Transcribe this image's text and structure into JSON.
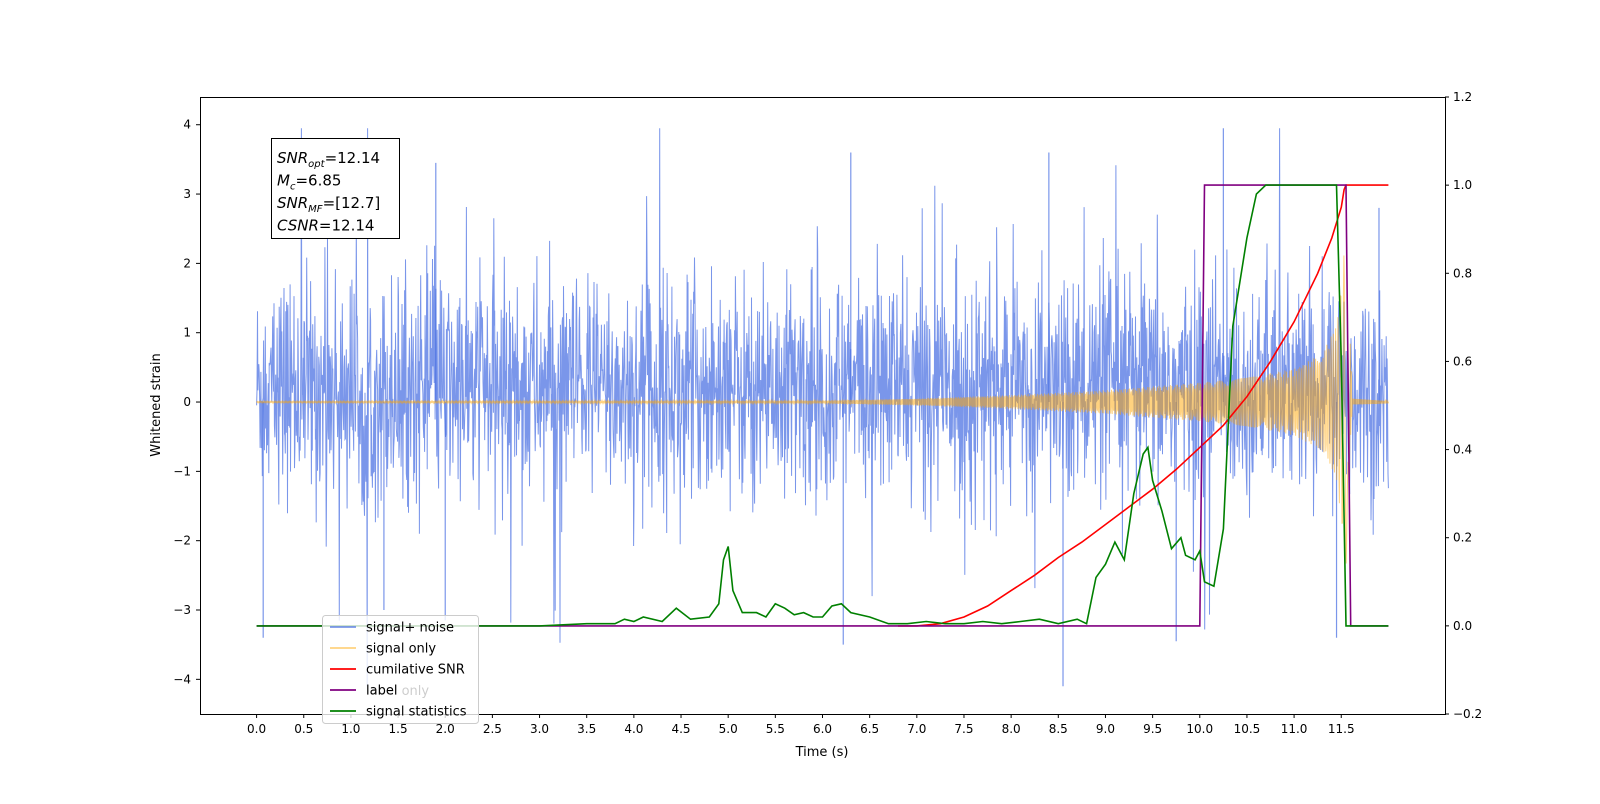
{
  "chart_data": {
    "type": "line",
    "xlabel": "Time (s)",
    "ylabel_left": "Whitened strain",
    "ylabel_right": "",
    "xlim": [
      -0.6,
      12.6
    ],
    "ylim_left": [
      -4.5,
      4.4
    ],
    "ylim_right": [
      -0.2,
      1.2
    ],
    "x_ticks": [
      0.0,
      0.5,
      1.0,
      1.5,
      2.0,
      2.5,
      3.0,
      3.5,
      4.0,
      4.5,
      5.0,
      5.5,
      6.0,
      6.5,
      7.0,
      7.5,
      8.0,
      8.5,
      9.0,
      9.5,
      10.0,
      10.5,
      11.0,
      11.5
    ],
    "x_tick_labels": [
      "0.0",
      "0.5",
      "1.0",
      "1.5",
      "2.0",
      "2.5",
      "3.0",
      "3.5",
      "4.0",
      "4.5",
      "5.0",
      "5.5",
      "6.0",
      "6.5",
      "7.0",
      "7.5",
      "8.0",
      "8.5",
      "9.0",
      "9.5",
      "10.0",
      "10.5",
      "11.0",
      "11.5"
    ],
    "y_ticks_left": [
      -4,
      -3,
      -2,
      -1,
      0,
      1,
      2,
      3,
      4
    ],
    "y_tick_labels_left": [
      "−4",
      "−3",
      "−2",
      "−1",
      "0",
      "1",
      "2",
      "3",
      "4"
    ],
    "y_ticks_right": [
      -0.2,
      0.0,
      0.2,
      0.4,
      0.6,
      0.8,
      1.0,
      1.2
    ],
    "y_tick_labels_right": [
      "−0.2",
      "0.0",
      "0.2",
      "0.4",
      "0.6",
      "0.8",
      "1.0",
      "1.2"
    ],
    "grid": false,
    "legend_position": "lower-left",
    "annotation": {
      "lines": [
        {
          "var": "SNR",
          "sub": "opt",
          "value": "=12.14"
        },
        {
          "var": "M",
          "sub": "c",
          "value": "=6.85"
        },
        {
          "var": "SNR",
          "sub": "MF",
          "value": "=[12.7]"
        },
        {
          "var": "CSNR",
          "sub": "",
          "value": "=12.14"
        }
      ]
    },
    "series": [
      {
        "name": "signal+ noise",
        "axis": "left",
        "color": "#4169e1",
        "kind": "noise",
        "x_start": 0.0,
        "x_end": 12.0,
        "typical_envelope": [
          -1.7,
          2.1
        ],
        "extreme_range": [
          -4.1,
          3.95
        ],
        "notable_peaks": [
          {
            "x": 0.07,
            "y": -3.4
          },
          {
            "x": 1.35,
            "y": -3.0
          },
          {
            "x": 2.0,
            "y": -3.15
          },
          {
            "x": 6.22,
            "y": -3.5
          },
          {
            "x": 8.55,
            "y": -4.1
          },
          {
            "x": 9.75,
            "y": -3.45
          },
          {
            "x": 11.45,
            "y": -3.4
          },
          {
            "x": 10.25,
            "y": 3.95
          },
          {
            "x": 8.4,
            "y": 3.6
          },
          {
            "x": 1.9,
            "y": 3.45
          },
          {
            "x": 6.3,
            "y": 3.6
          },
          {
            "x": 11.9,
            "y": 2.8
          }
        ]
      },
      {
        "name": "signal only",
        "axis": "left",
        "color": "#ffa500",
        "kind": "chirp",
        "x_start": 0.0,
        "x_end": 12.0,
        "merger_time": 11.6,
        "amplitude_points": [
          [
            0.0,
            0.01
          ],
          [
            6.0,
            0.02
          ],
          [
            7.0,
            0.05
          ],
          [
            8.0,
            0.1
          ],
          [
            9.0,
            0.17
          ],
          [
            10.0,
            0.28
          ],
          [
            10.5,
            0.35
          ],
          [
            11.0,
            0.48
          ],
          [
            11.3,
            0.7
          ],
          [
            11.45,
            1.1
          ],
          [
            11.55,
            2.4
          ],
          [
            11.62,
            0.05
          ],
          [
            12.0,
            0.02
          ]
        ]
      },
      {
        "name": "cumilative SNR",
        "axis": "right",
        "color": "#ff0000",
        "points": [
          [
            6.8,
            0.0
          ],
          [
            7.0,
            0.0
          ],
          [
            7.25,
            0.005
          ],
          [
            7.5,
            0.02
          ],
          [
            7.75,
            0.045
          ],
          [
            8.0,
            0.08
          ],
          [
            8.25,
            0.115
          ],
          [
            8.5,
            0.155
          ],
          [
            8.75,
            0.19
          ],
          [
            9.0,
            0.23
          ],
          [
            9.25,
            0.27
          ],
          [
            9.5,
            0.31
          ],
          [
            9.75,
            0.355
          ],
          [
            10.0,
            0.405
          ],
          [
            10.25,
            0.455
          ],
          [
            10.5,
            0.52
          ],
          [
            10.75,
            0.6
          ],
          [
            11.0,
            0.69
          ],
          [
            11.25,
            0.8
          ],
          [
            11.4,
            0.88
          ],
          [
            11.5,
            0.95
          ],
          [
            11.53,
            0.99
          ],
          [
            11.55,
            1.0
          ],
          [
            12.0,
            1.0
          ]
        ]
      },
      {
        "name": "label",
        "axis": "right",
        "color": "#800080",
        "points": [
          [
            0.0,
            0.0
          ],
          [
            10.0,
            0.0
          ],
          [
            10.05,
            1.0
          ],
          [
            11.55,
            1.0
          ],
          [
            11.6,
            0.0
          ],
          [
            12.0,
            0.0
          ]
        ]
      },
      {
        "name": "signal statistics",
        "axis": "right",
        "color": "#008000",
        "points": [
          [
            0.0,
            0.0
          ],
          [
            1.0,
            0.0
          ],
          [
            2.0,
            0.0
          ],
          [
            3.0,
            0.0
          ],
          [
            3.5,
            0.005
          ],
          [
            3.8,
            0.005
          ],
          [
            3.9,
            0.015
          ],
          [
            4.0,
            0.01
          ],
          [
            4.1,
            0.02
          ],
          [
            4.3,
            0.01
          ],
          [
            4.45,
            0.04
          ],
          [
            4.6,
            0.015
          ],
          [
            4.8,
            0.02
          ],
          [
            4.9,
            0.05
          ],
          [
            4.95,
            0.15
          ],
          [
            5.0,
            0.18
          ],
          [
            5.05,
            0.08
          ],
          [
            5.15,
            0.03
          ],
          [
            5.3,
            0.03
          ],
          [
            5.4,
            0.02
          ],
          [
            5.5,
            0.05
          ],
          [
            5.6,
            0.04
          ],
          [
            5.7,
            0.025
          ],
          [
            5.8,
            0.03
          ],
          [
            5.9,
            0.02
          ],
          [
            6.0,
            0.02
          ],
          [
            6.1,
            0.045
          ],
          [
            6.2,
            0.05
          ],
          [
            6.3,
            0.03
          ],
          [
            6.5,
            0.02
          ],
          [
            6.7,
            0.005
          ],
          [
            6.9,
            0.005
          ],
          [
            7.1,
            0.01
          ],
          [
            7.3,
            0.005
          ],
          [
            7.5,
            0.005
          ],
          [
            7.7,
            0.01
          ],
          [
            7.9,
            0.005
          ],
          [
            8.1,
            0.01
          ],
          [
            8.3,
            0.015
          ],
          [
            8.5,
            0.005
          ],
          [
            8.7,
            0.015
          ],
          [
            8.8,
            0.005
          ],
          [
            8.9,
            0.11
          ],
          [
            9.0,
            0.14
          ],
          [
            9.1,
            0.19
          ],
          [
            9.2,
            0.15
          ],
          [
            9.3,
            0.3
          ],
          [
            9.4,
            0.39
          ],
          [
            9.45,
            0.405
          ],
          [
            9.5,
            0.33
          ],
          [
            9.6,
            0.26
          ],
          [
            9.7,
            0.175
          ],
          [
            9.8,
            0.2
          ],
          [
            9.85,
            0.16
          ],
          [
            9.95,
            0.15
          ],
          [
            10.0,
            0.17
          ],
          [
            10.05,
            0.1
          ],
          [
            10.15,
            0.09
          ],
          [
            10.25,
            0.22
          ],
          [
            10.35,
            0.68
          ],
          [
            10.5,
            0.88
          ],
          [
            10.6,
            0.98
          ],
          [
            10.7,
            1.0
          ],
          [
            11.0,
            1.0
          ],
          [
            11.3,
            1.0
          ],
          [
            11.45,
            1.0
          ],
          [
            11.5,
            0.6
          ],
          [
            11.55,
            0.0
          ],
          [
            12.0,
            0.0
          ]
        ]
      }
    ],
    "legend": [
      {
        "name": "signal+ noise",
        "color": "#4169e1",
        "opacity": 0.7
      },
      {
        "name": "signal only",
        "color": "#ffa500",
        "opacity": 0.5
      },
      {
        "name": "cumilative SNR",
        "color": "#ff0000",
        "opacity": 1
      },
      {
        "name": "label",
        "color": "#800080",
        "opacity": 1
      },
      {
        "name": "signal statistics",
        "color": "#008000",
        "opacity": 1
      }
    ],
    "legend_overlapped_text": "label only"
  }
}
